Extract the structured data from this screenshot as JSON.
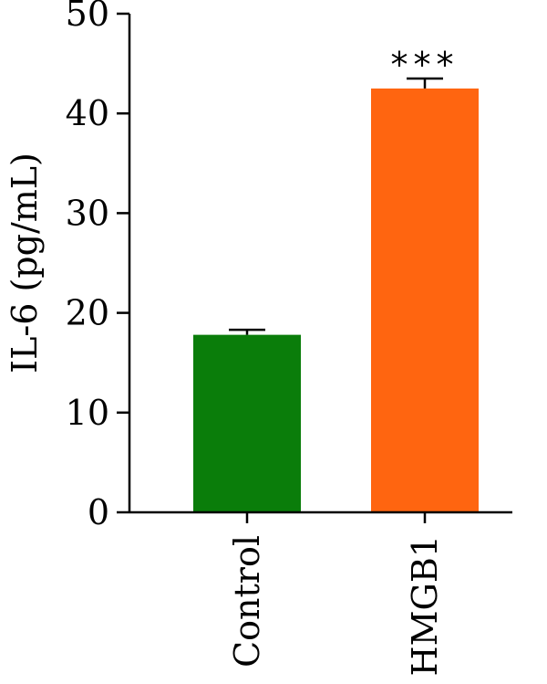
{
  "chart_data": {
    "type": "bar",
    "title": "",
    "xlabel": "",
    "ylabel": "IL-6 (pg/mL)",
    "ylim": [
      0,
      50
    ],
    "yticks": [
      0,
      10,
      20,
      30,
      40,
      50
    ],
    "grid": false,
    "categories": [
      "Control",
      "HMGB1"
    ],
    "values": [
      17.8,
      42.5
    ],
    "errors": [
      0.5,
      1.0
    ],
    "colors": [
      "#0a7d0a",
      "#ff6510"
    ],
    "annotations": [
      "",
      "***"
    ]
  }
}
